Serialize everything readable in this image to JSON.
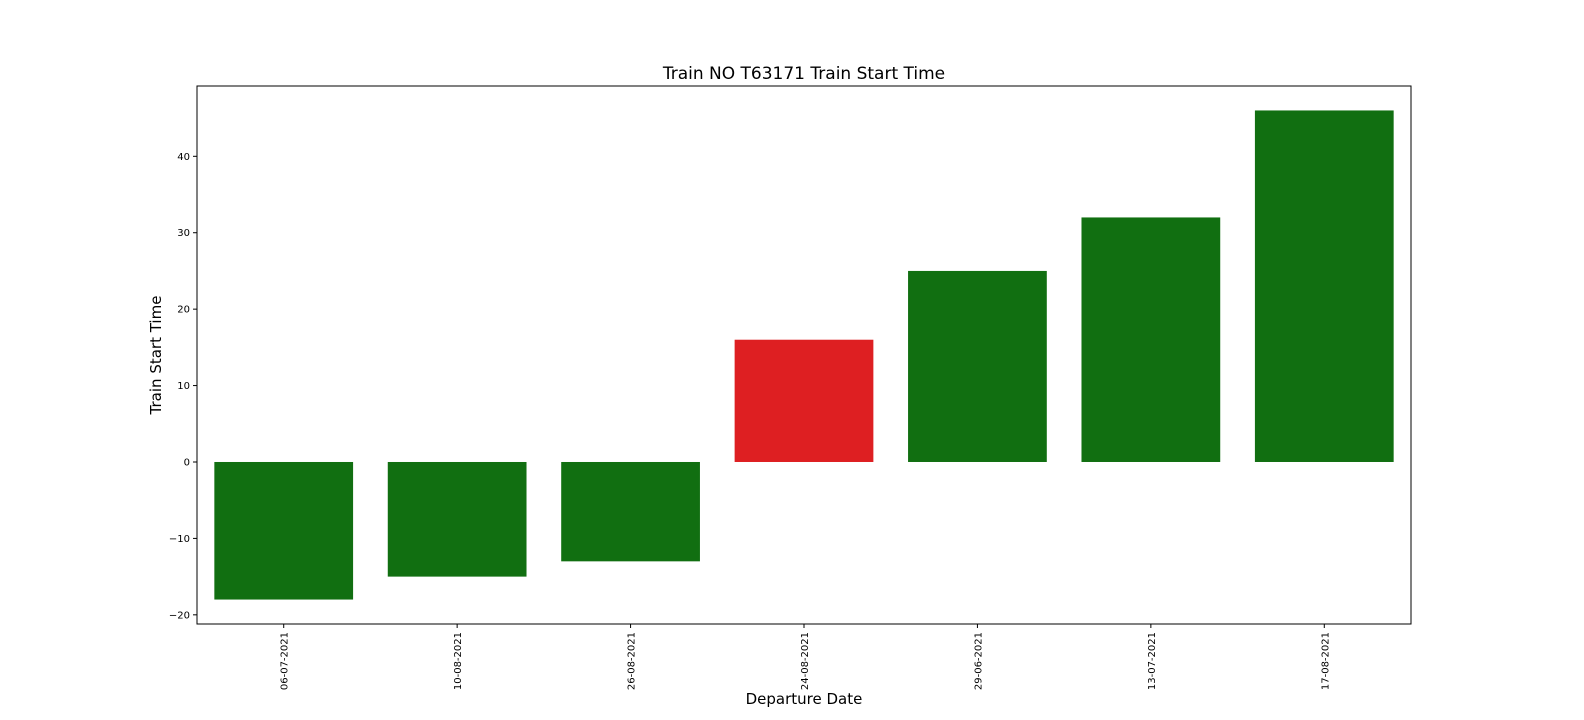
{
  "chart_data": {
    "type": "bar",
    "title": "Train NO T63171 Train Start Time",
    "xlabel": "Departure Date",
    "ylabel": "Train Start Time",
    "categories": [
      "06-07-2021",
      "10-08-2021",
      "26-08-2021",
      "24-08-2021",
      "29-06-2021",
      "13-07-2021",
      "17-08-2021"
    ],
    "values": [
      -18,
      -15,
      -13,
      16,
      25,
      32,
      46
    ],
    "bar_colors": [
      "#116f11",
      "#116f11",
      "#116f11",
      "#de1f22",
      "#116f11",
      "#116f11",
      "#116f11"
    ],
    "ylim": [
      -21.2,
      49.2
    ],
    "yticks": [
      -20,
      -10,
      0,
      10,
      20,
      30,
      40
    ],
    "ytick_labels": [
      "−20",
      "−10",
      "0",
      "10",
      "20",
      "30",
      "40"
    ],
    "grid": false,
    "legend": "none"
  }
}
